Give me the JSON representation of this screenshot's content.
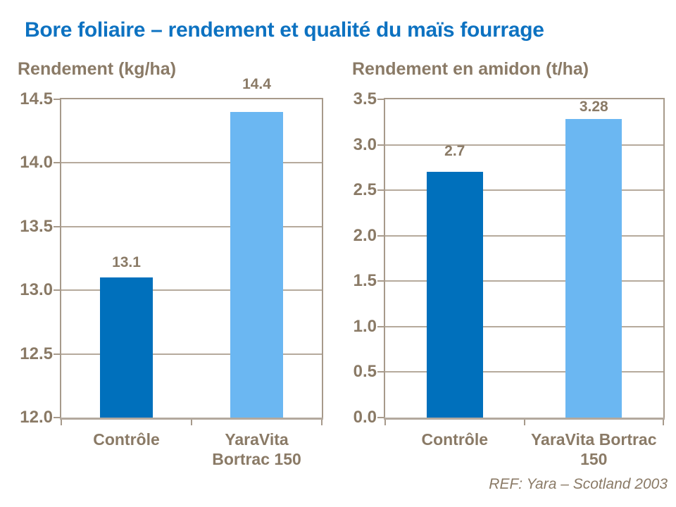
{
  "slide": {
    "title": "Bore foliaire – rendement et qualité du maïs fourrage",
    "footer": "REF: Yara – Scotland 2003"
  },
  "colors": {
    "title_blue": "#0d72c1",
    "bar_dark_blue": "#0070bc",
    "bar_light_blue": "#6bb7f2",
    "text_brown": "#8a7a66",
    "gridline": "#b6aa9c",
    "axis_line": "#a79a8b"
  },
  "chart_data": [
    {
      "type": "bar",
      "title": "Rendement (kg/ha)",
      "categories": [
        "Contrôle",
        "YaraVita Bortrac 150"
      ],
      "values": [
        13.1,
        14.4
      ],
      "value_labels": [
        "13.1",
        "14.4"
      ],
      "bar_colors": [
        "#0070bc",
        "#6bb7f2"
      ],
      "ylim": [
        12.0,
        14.5
      ],
      "ytick_step": 0.5,
      "yticks": [
        "14.5",
        "14.0",
        "13.5",
        "13.0",
        "12.5",
        "12.0"
      ],
      "grid": true,
      "legend": false
    },
    {
      "type": "bar",
      "title": "Rendement en amidon (t/ha)",
      "categories": [
        "Contrôle",
        "YaraVita Bortrac 150"
      ],
      "values": [
        2.7,
        3.28
      ],
      "value_labels": [
        "2.7",
        "3.28"
      ],
      "bar_colors": [
        "#0070bc",
        "#6bb7f2"
      ],
      "ylim": [
        0.0,
        3.5
      ],
      "ytick_step": 0.5,
      "yticks": [
        "3.5",
        "3.0",
        "2.5",
        "2.0",
        "1.5",
        "1.0",
        "0.5",
        "0.0"
      ],
      "grid": true,
      "legend": false
    }
  ]
}
